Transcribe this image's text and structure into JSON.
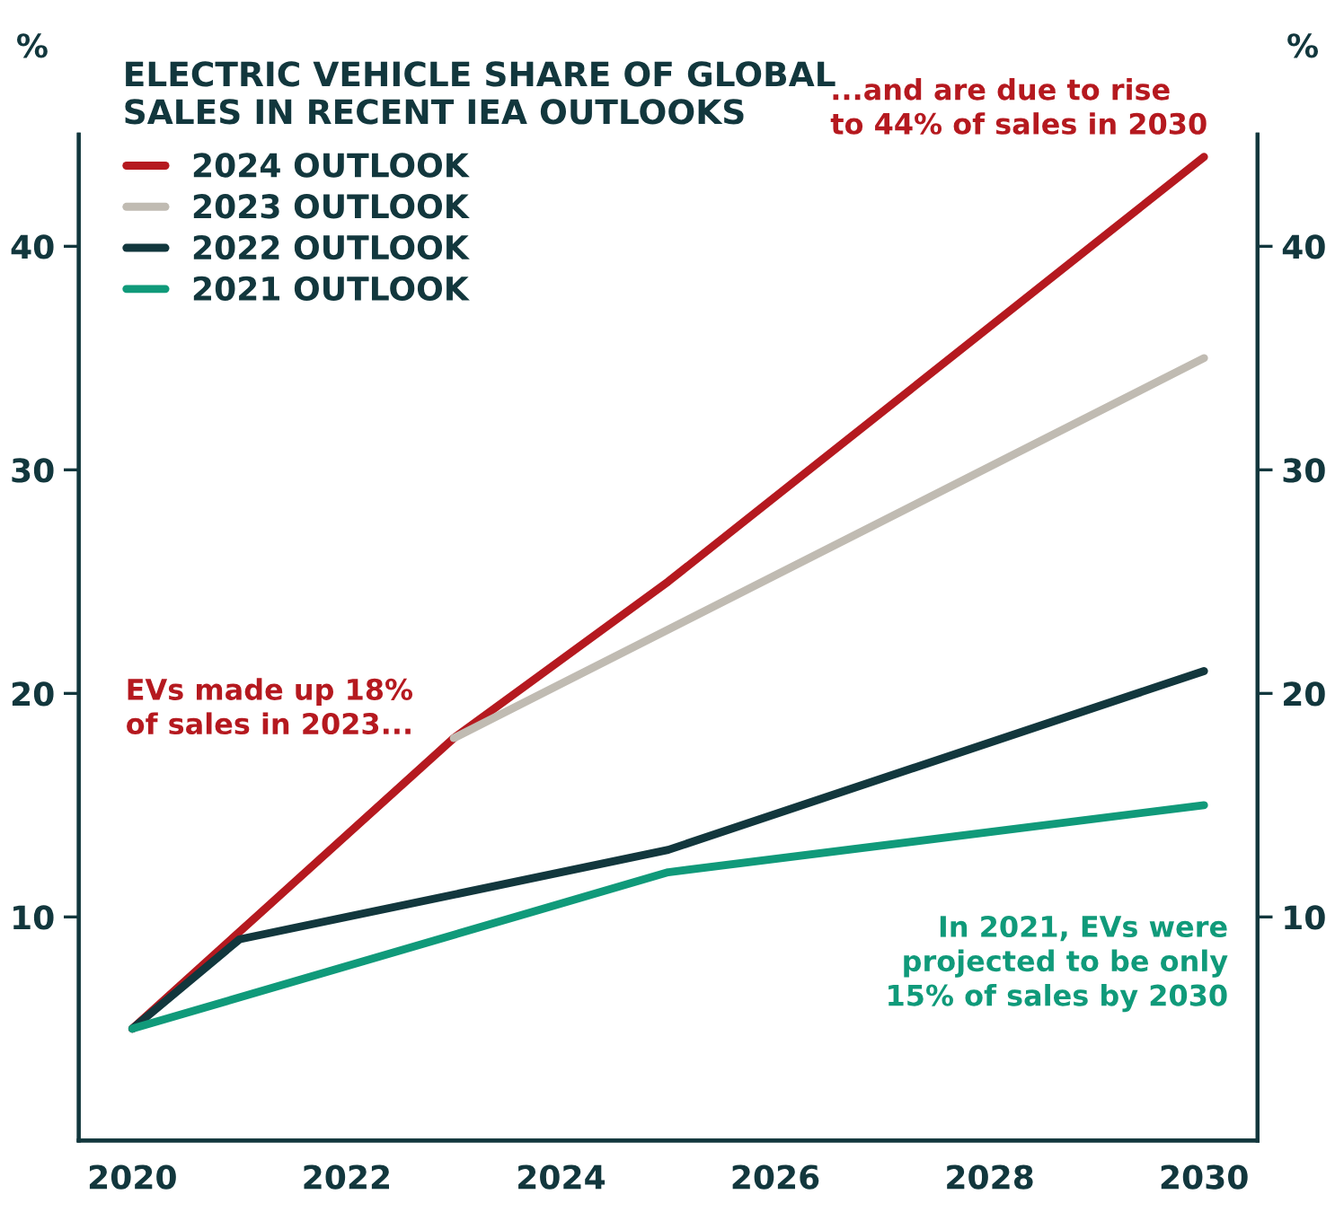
{
  "chart_data": {
    "type": "line",
    "title": "ELECTRIC VEHICLE SHARE OF GLOBAL\nSALES IN RECENT IEA OUTLOOKS",
    "ylabel": "%",
    "y2label": "%",
    "xlim": [
      2019.5,
      2030.5
    ],
    "xticks": [
      2020,
      2022,
      2024,
      2026,
      2028,
      2030
    ],
    "ylim": [
      0,
      45
    ],
    "yticks": [
      10,
      20,
      30,
      40
    ],
    "y2lim": [
      0,
      45
    ],
    "y2ticks": [
      10,
      20,
      30,
      40
    ],
    "grid": false,
    "legend": "top left",
    "marker": "none",
    "line_style": "solid",
    "series": [
      {
        "name": "2024 OUTLOOK",
        "color": "#b5191f",
        "x": [
          2020,
          2023,
          2025,
          2030
        ],
        "values": [
          5,
          18,
          25,
          44
        ]
      },
      {
        "name": "2023 OUTLOOK",
        "color": "#c0bbb2",
        "x": [
          2023,
          2030
        ],
        "values": [
          18,
          35
        ]
      },
      {
        "name": "2022 OUTLOOK",
        "color": "#12373d",
        "x": [
          2020,
          2021,
          2025,
          2030
        ],
        "values": [
          5,
          9,
          13,
          21
        ]
      },
      {
        "name": "2021 OUTLOOK",
        "color": "#109a7a",
        "x": [
          2020,
          2025,
          2030
        ],
        "values": [
          5,
          12,
          15
        ]
      }
    ],
    "annotations": [
      "EVs made up 18%\nof sales in 2023...",
      "...and are due to rise\nto 44% of sales in 2030",
      "In 2021, EVs were\nprojected to be only\n15% of sales by 2030"
    ]
  }
}
